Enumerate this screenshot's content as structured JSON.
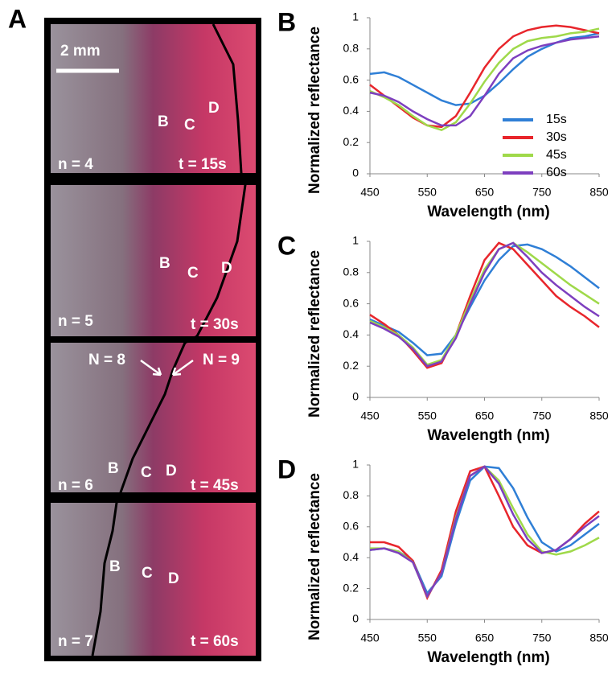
{
  "panel_a": {
    "label": "A",
    "scale_bar": "2 mm",
    "frames": [
      {
        "zones": [
          "B",
          "C",
          "D"
        ],
        "n": "n = 4",
        "t": "t = 15s"
      },
      {
        "zones": [
          "B",
          "C",
          "D"
        ],
        "n": "n = 5",
        "t": "t = 30s"
      },
      {
        "zones": [
          "B",
          "C",
          "D"
        ],
        "n": "n = 6",
        "t": "t = 45s"
      },
      {
        "zones": [
          "B",
          "C",
          "D"
        ],
        "n": "n = 7",
        "t": "t = 60s"
      }
    ],
    "arrows": [
      "N = 8",
      "N = 9"
    ]
  },
  "chart_data": [
    {
      "type": "line",
      "panel_label": "B",
      "xlabel": "Wavelength (nm)",
      "ylabel": "Normalized reflectance",
      "x": [
        450,
        475,
        500,
        525,
        550,
        575,
        600,
        625,
        650,
        675,
        700,
        725,
        750,
        775,
        800,
        825,
        850
      ],
      "xlim": [
        450,
        850
      ],
      "xticks": [
        450,
        550,
        650,
        750,
        850
      ],
      "ylim": [
        0,
        1
      ],
      "yticks": [
        0,
        0.2,
        0.4,
        0.6,
        0.8,
        1
      ],
      "legend": "center right",
      "series": [
        {
          "name": "15s",
          "color": "#2f7fd6",
          "values": [
            0.64,
            0.65,
            0.62,
            0.57,
            0.52,
            0.47,
            0.44,
            0.45,
            0.5,
            0.58,
            0.67,
            0.75,
            0.8,
            0.84,
            0.87,
            0.88,
            0.9
          ]
        },
        {
          "name": "30s",
          "color": "#e8262c",
          "values": [
            0.57,
            0.5,
            0.43,
            0.36,
            0.31,
            0.3,
            0.37,
            0.52,
            0.68,
            0.8,
            0.88,
            0.92,
            0.94,
            0.95,
            0.94,
            0.92,
            0.9
          ]
        },
        {
          "name": "45s",
          "color": "#9fd94a",
          "values": [
            0.53,
            0.49,
            0.44,
            0.37,
            0.31,
            0.28,
            0.33,
            0.45,
            0.59,
            0.71,
            0.8,
            0.85,
            0.87,
            0.88,
            0.9,
            0.91,
            0.93
          ]
        },
        {
          "name": "60s",
          "color": "#7d3fbf",
          "values": [
            0.52,
            0.5,
            0.46,
            0.4,
            0.35,
            0.31,
            0.31,
            0.37,
            0.5,
            0.64,
            0.74,
            0.79,
            0.82,
            0.84,
            0.86,
            0.87,
            0.88
          ]
        }
      ]
    },
    {
      "type": "line",
      "panel_label": "C",
      "xlabel": "Wavelength (nm)",
      "ylabel": "Normalized reflectance",
      "x": [
        450,
        475,
        500,
        525,
        550,
        575,
        600,
        625,
        650,
        675,
        700,
        725,
        750,
        775,
        800,
        825,
        850
      ],
      "xlim": [
        450,
        850
      ],
      "xticks": [
        450,
        550,
        650,
        750,
        850
      ],
      "ylim": [
        0,
        1
      ],
      "yticks": [
        0,
        0.2,
        0.4,
        0.6,
        0.8,
        1
      ],
      "series": [
        {
          "color": "#2f7fd6",
          "values": [
            0.5,
            0.46,
            0.42,
            0.35,
            0.27,
            0.28,
            0.4,
            0.58,
            0.75,
            0.88,
            0.97,
            0.98,
            0.95,
            0.9,
            0.84,
            0.77,
            0.7
          ]
        },
        {
          "color": "#e8262c",
          "values": [
            0.53,
            0.47,
            0.4,
            0.3,
            0.19,
            0.22,
            0.4,
            0.65,
            0.88,
            0.99,
            0.95,
            0.85,
            0.75,
            0.65,
            0.58,
            0.52,
            0.45
          ]
        },
        {
          "color": "#9fd94a",
          "values": [
            0.49,
            0.45,
            0.4,
            0.32,
            0.21,
            0.24,
            0.4,
            0.62,
            0.82,
            0.95,
            0.99,
            0.93,
            0.86,
            0.79,
            0.72,
            0.66,
            0.6
          ]
        },
        {
          "color": "#7d3fbf",
          "values": [
            0.48,
            0.44,
            0.39,
            0.31,
            0.2,
            0.23,
            0.38,
            0.6,
            0.8,
            0.95,
            0.99,
            0.9,
            0.8,
            0.72,
            0.65,
            0.58,
            0.52
          ]
        }
      ]
    },
    {
      "type": "line",
      "panel_label": "D",
      "xlabel": "Wavelength (nm)",
      "ylabel": "Normalized reflectance",
      "x": [
        450,
        475,
        500,
        525,
        550,
        575,
        600,
        625,
        650,
        675,
        700,
        725,
        750,
        775,
        800,
        825,
        850
      ],
      "xlim": [
        450,
        850
      ],
      "xticks": [
        450,
        550,
        650,
        750,
        850
      ],
      "ylim": [
        0,
        1
      ],
      "yticks": [
        0,
        0.2,
        0.4,
        0.6,
        0.8,
        1
      ],
      "series": [
        {
          "color": "#2f7fd6",
          "values": [
            0.45,
            0.46,
            0.44,
            0.38,
            0.17,
            0.28,
            0.62,
            0.9,
            0.99,
            0.98,
            0.85,
            0.66,
            0.5,
            0.44,
            0.48,
            0.55,
            0.62
          ]
        },
        {
          "color": "#e8262c",
          "values": [
            0.5,
            0.5,
            0.47,
            0.38,
            0.14,
            0.32,
            0.7,
            0.96,
            0.99,
            0.8,
            0.6,
            0.48,
            0.43,
            0.45,
            0.52,
            0.62,
            0.7
          ]
        },
        {
          "color": "#9fd94a",
          "values": [
            0.46,
            0.46,
            0.44,
            0.37,
            0.15,
            0.3,
            0.66,
            0.93,
            0.99,
            0.9,
            0.72,
            0.55,
            0.44,
            0.42,
            0.44,
            0.48,
            0.53
          ]
        },
        {
          "color": "#7d3fbf",
          "values": [
            0.45,
            0.46,
            0.43,
            0.37,
            0.15,
            0.3,
            0.65,
            0.93,
            0.99,
            0.88,
            0.68,
            0.52,
            0.43,
            0.45,
            0.52,
            0.6,
            0.67
          ]
        }
      ]
    }
  ]
}
